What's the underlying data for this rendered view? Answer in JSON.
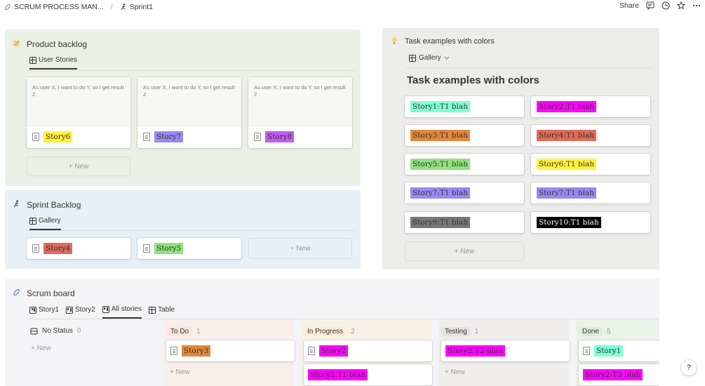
{
  "colors": {
    "green_panel": "#ebf0e6",
    "blue_panel": "#e7f0f6",
    "gray_panel": "#ececea",
    "board_panel": "#f4f3f6",
    "aquamarine": "#7fffd4",
    "magenta": "#ff00ff",
    "orange": "#e0883c",
    "red": "#de6a5a",
    "lightgreen": "#8fe27e",
    "yellow": "#fff23a",
    "purple": "#9b88f4",
    "gray": "#777777",
    "black": "#000000",
    "todo": "#fbe4dc",
    "inprogress": "#fbecd6",
    "testing": "#e3e2e0",
    "done": "#dbeddb"
  },
  "topbar": {
    "workspace": "SCRUM PROCESS MAN...",
    "separator": "/",
    "page": "Sprint1",
    "share": "Share",
    "icons": [
      "comment-icon",
      "clock-icon",
      "star-icon",
      "more-icon"
    ]
  },
  "product_backlog": {
    "title": "Product backlog",
    "view": "User Stories",
    "preview": "As user X, I want to do Y, so I get result Z",
    "cards": [
      "Story6",
      "Story7",
      "Story8"
    ],
    "new": "+ New"
  },
  "sprint_backlog": {
    "title": "Sprint Backlog",
    "view": "Gallery",
    "cards": [
      "Story4",
      "Story5"
    ],
    "new": "+ New"
  },
  "task_examples": {
    "title": "Task examples with colors",
    "view": "Gallery",
    "heading": "Task examples with colors",
    "items": [
      "Story1:T1 blah",
      "Story2:T1 blah",
      "Story3:T1 blah",
      "Story4:T1 blah",
      "Story5:T1 blah",
      "Story6:T1 blah",
      "Story7:T1 blah",
      "Story7:T1 blah",
      "Story9:T1 blah",
      "Story10:T1 blah"
    ],
    "new": "+ New"
  },
  "scrum_board": {
    "title": "Scrum board",
    "tabs": [
      "Story1",
      "Story2",
      "All stories",
      "Table"
    ],
    "columns": [
      {
        "name": "No Status",
        "count": "0",
        "new": "+ New"
      },
      {
        "name": "To Do",
        "count": "1",
        "card": "Story3",
        "new": "+ New"
      },
      {
        "name": "In Progress",
        "count": "2",
        "card": "Story2",
        "card2": "Story2:T1 blah"
      },
      {
        "name": "Testing",
        "count": "1",
        "card": "Story2:T2 blah",
        "new": "+ New"
      },
      {
        "name": "Done",
        "count": "5",
        "card": "Story1",
        "card2": "Story2:T3 blah"
      }
    ]
  },
  "help": "?"
}
